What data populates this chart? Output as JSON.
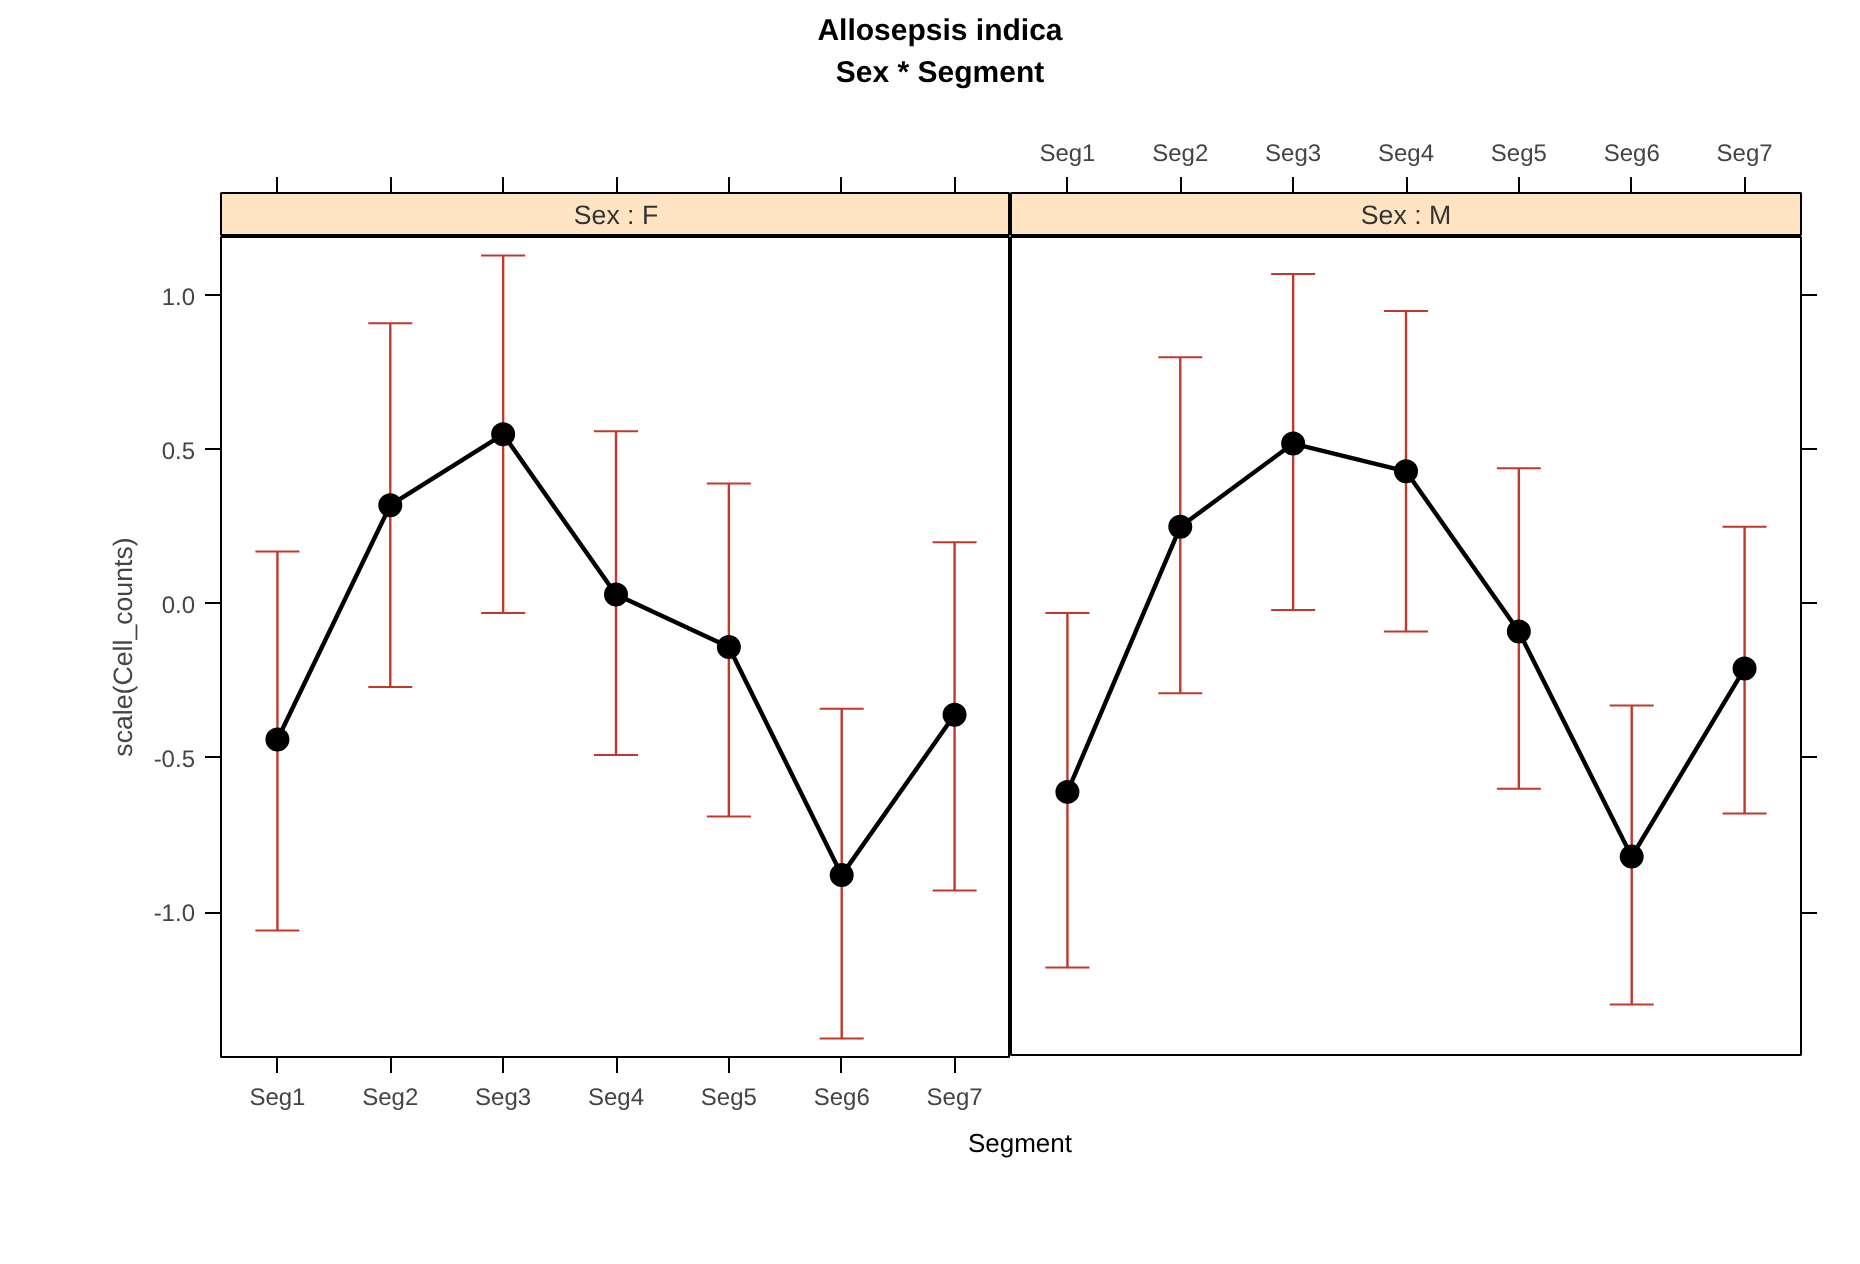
{
  "chart_data": [
    {
      "type": "line",
      "title": "Allosepsis indica",
      "subtitle": "Sex * Segment",
      "xlabel": "Segment",
      "ylabel": "scale(Cell_counts)",
      "annotations": [
        "Sex : F"
      ],
      "categories": [
        "Seg1",
        "Seg2",
        "Seg3",
        "Seg4",
        "Seg5",
        "Seg6",
        "Seg7"
      ],
      "series": [
        {
          "color": "#000000",
          "values": [
            -0.44,
            0.32,
            0.55,
            0.03,
            -0.14,
            -0.88,
            -0.36
          ],
          "errors": [
            [
              -1.06,
              0.17
            ],
            [
              -0.27,
              0.91
            ],
            [
              -0.03,
              1.13
            ],
            [
              -0.49,
              0.56
            ],
            [
              -0.69,
              0.39
            ],
            [
              -1.41,
              -0.34
            ],
            [
              -0.93,
              0.2
            ]
          ]
        }
      ],
      "ylim": [
        -1.47,
        1.19
      ],
      "yticks": [
        {
          "value": -1.0,
          "label": "-1.0"
        },
        {
          "value": -0.5,
          "label": "-0.5"
        },
        {
          "value": 0.0,
          "label": "0.0"
        },
        {
          "value": 0.5,
          "label": "0.5"
        },
        {
          "value": 1.0,
          "label": "1.0"
        }
      ],
      "marker": "circle",
      "line_style": "solid",
      "grid": false
    },
    {
      "type": "line",
      "annotations": [
        "Sex : M"
      ],
      "categories": [
        "Seg1",
        "Seg2",
        "Seg3",
        "Seg4",
        "Seg5",
        "Seg6",
        "Seg7"
      ],
      "series": [
        {
          "color": "#000000",
          "values": [
            -0.61,
            0.25,
            0.52,
            0.43,
            -0.09,
            -0.82,
            -0.21
          ],
          "errors": [
            [
              -1.18,
              -0.03
            ],
            [
              -0.29,
              0.8
            ],
            [
              -0.02,
              1.07
            ],
            [
              -0.09,
              0.95
            ],
            [
              -0.6,
              0.44
            ],
            [
              -1.3,
              -0.33
            ],
            [
              -0.68,
              0.25
            ]
          ]
        }
      ],
      "ylim": [
        -1.47,
        1.19
      ],
      "marker": "circle",
      "line_style": "solid",
      "grid": false,
      "tick_labels": "x",
      "yticks": [
        -1.0,
        -0.5,
        0.0,
        0.5,
        1.0
      ]
    }
  ]
}
